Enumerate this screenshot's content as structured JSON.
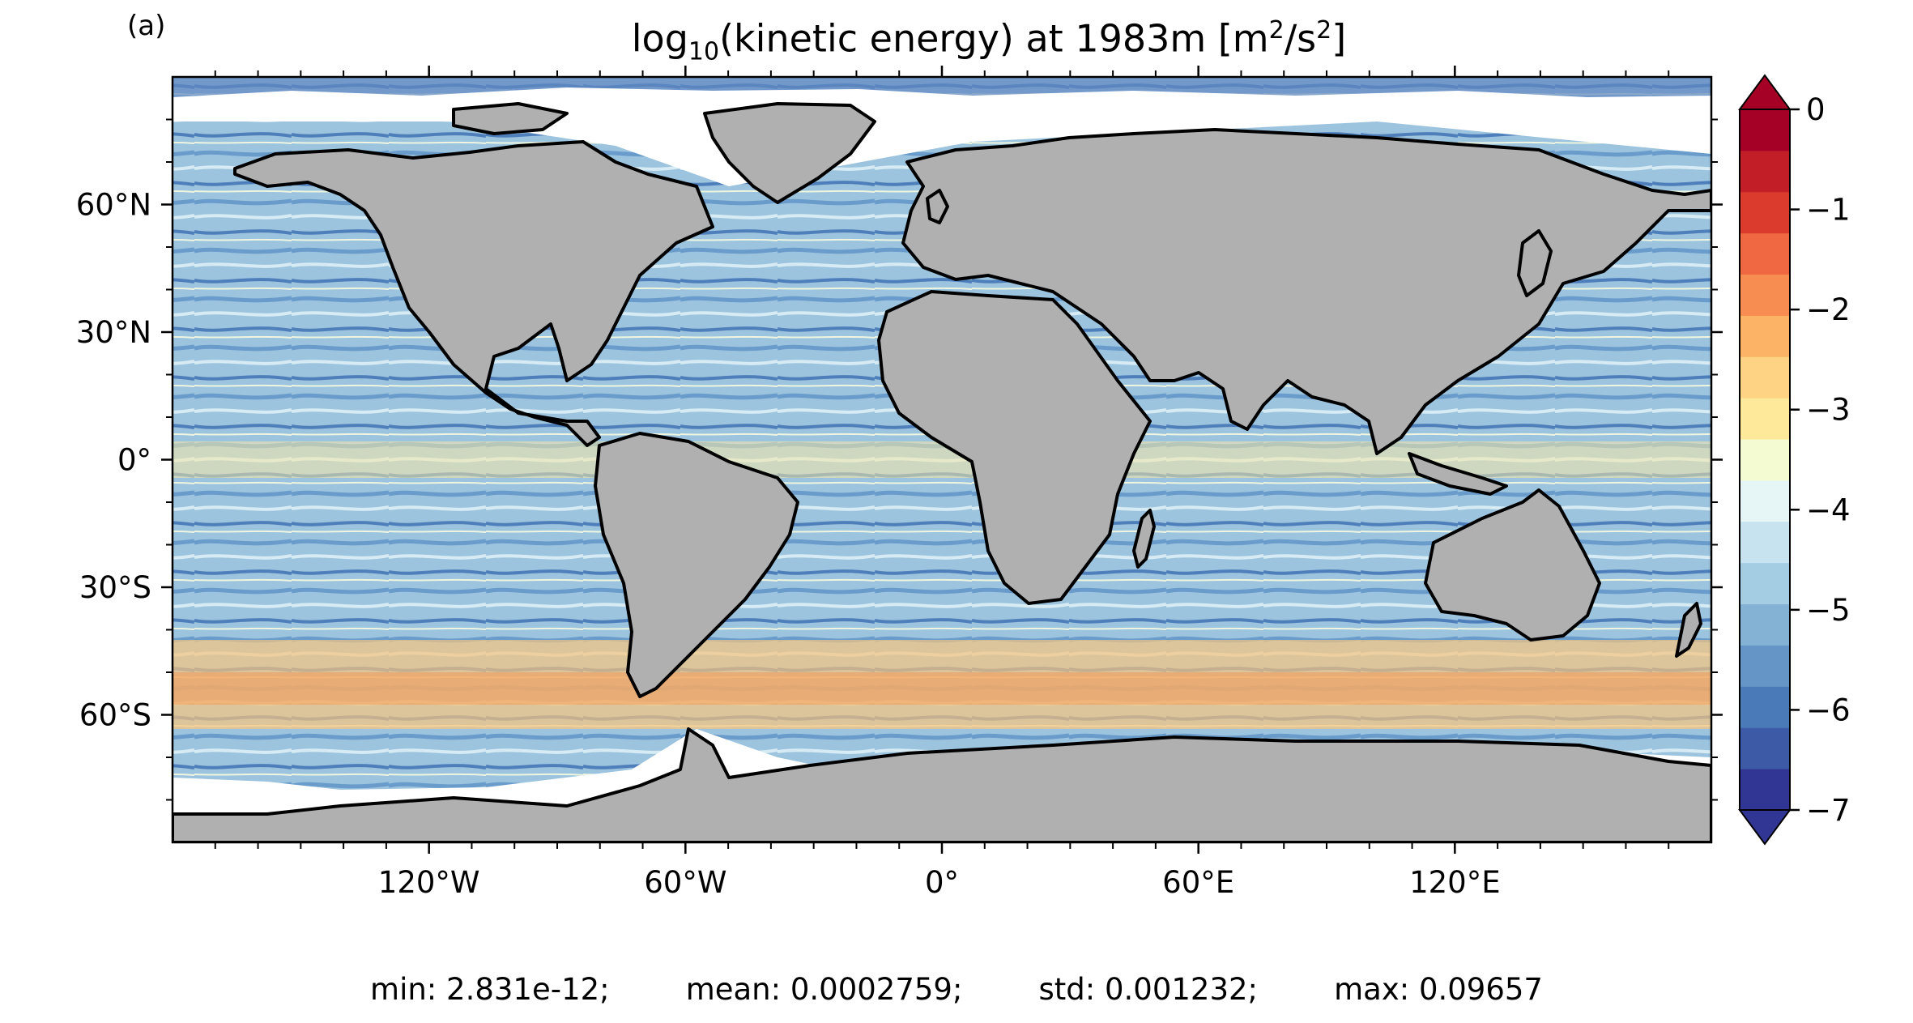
{
  "panel_label": "(a)",
  "title": {
    "prefix": "log",
    "subscript": "10",
    "middle": "(kinetic energy) at 1983m [m",
    "sup1": "2",
    "slash": "/s",
    "sup2": "2",
    "suffix": "]"
  },
  "map": {
    "projection": "PlateCarree",
    "lon_range": [
      -180,
      180
    ],
    "lat_range": [
      -90,
      90
    ],
    "land_color": "#b0b0b0",
    "coast_color": "#000000",
    "x_ticks": [
      {
        "value": -120,
        "label": "120°W"
      },
      {
        "value": -60,
        "label": "60°W"
      },
      {
        "value": 0,
        "label": "0°"
      },
      {
        "value": 60,
        "label": "60°E"
      },
      {
        "value": 120,
        "label": "120°E"
      }
    ],
    "y_ticks": [
      {
        "value": 60,
        "label": "60°N"
      },
      {
        "value": 30,
        "label": "30°N"
      },
      {
        "value": 0,
        "label": "0°"
      },
      {
        "value": -30,
        "label": "30°S"
      },
      {
        "value": -60,
        "label": "60°S"
      }
    ]
  },
  "colorbar": {
    "cmap": "RdYlBu_r",
    "min": -7,
    "max": 0,
    "extend": "both",
    "colors": [
      "#313695",
      "#3d5aa7",
      "#4a7ab8",
      "#6495c6",
      "#84b2d5",
      "#a4cde3",
      "#c6e3ef",
      "#e6f5f6",
      "#f4fbd3",
      "#fee99a",
      "#fed484",
      "#fdb366",
      "#f88d52",
      "#ef6841",
      "#db3b2c",
      "#c11e28",
      "#a50026"
    ],
    "ticks": [
      {
        "value": 0,
        "label": "0"
      },
      {
        "value": -1,
        "label": "−1"
      },
      {
        "value": -2,
        "label": "−2"
      },
      {
        "value": -3,
        "label": "−3"
      },
      {
        "value": -4,
        "label": "−4"
      },
      {
        "value": -5,
        "label": "−5"
      },
      {
        "value": -6,
        "label": "−6"
      },
      {
        "value": -7,
        "label": "−7"
      }
    ]
  },
  "stats": {
    "text": "min: 2.831e-12;        mean: 0.0002759;        std: 0.001232;        max: 0.09657"
  }
}
